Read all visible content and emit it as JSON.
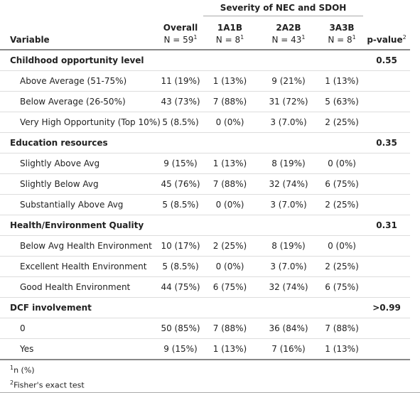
{
  "header": {
    "spanner": "Severity of NEC and SDOH",
    "columns": [
      {
        "name": "Variable"
      },
      {
        "name": "Overall",
        "n": "N = 59",
        "mark": "1"
      },
      {
        "name": "1A1B",
        "n": "N = 8",
        "mark": "1"
      },
      {
        "name": "2A2B",
        "n": "N = 43",
        "mark": "1"
      },
      {
        "name": "3A3B",
        "n": "N = 8",
        "mark": "1"
      },
      {
        "name": "p-value",
        "mark": "2"
      }
    ]
  },
  "table": {
    "groups": [
      {
        "label": "Childhood opportunity level",
        "p": "0.55",
        "rows": [
          {
            "label": "Above Average (51-75%)",
            "values": [
              "11 (19%)",
              "1 (13%)",
              "9 (21%)",
              "1 (13%)"
            ]
          },
          {
            "label": "Below Average (26-50%)",
            "values": [
              "43 (73%)",
              "7 (88%)",
              "31 (72%)",
              "5 (63%)"
            ]
          },
          {
            "label": "Very High Opportunity (Top 10%)",
            "values": [
              "5 (8.5%)",
              "0 (0%)",
              "3 (7.0%)",
              "2 (25%)"
            ]
          }
        ]
      },
      {
        "label": "Education resources",
        "p": "0.35",
        "rows": [
          {
            "label": "Slightly Above Avg",
            "values": [
              "9 (15%)",
              "1 (13%)",
              "8 (19%)",
              "0 (0%)"
            ]
          },
          {
            "label": "Slightly Below Avg",
            "values": [
              "45 (76%)",
              "7 (88%)",
              "32 (74%)",
              "6 (75%)"
            ]
          },
          {
            "label": "Substantially Above Avg",
            "values": [
              "5 (8.5%)",
              "0 (0%)",
              "3 (7.0%)",
              "2 (25%)"
            ]
          }
        ]
      },
      {
        "label": "Health/Environment Quality",
        "p": "0.31",
        "rows": [
          {
            "label": "Below Avg Health Environment",
            "values": [
              "10 (17%)",
              "2 (25%)",
              "8 (19%)",
              "0 (0%)"
            ]
          },
          {
            "label": "Excellent Health Environment",
            "values": [
              "5 (8.5%)",
              "0 (0%)",
              "3 (7.0%)",
              "2 (25%)"
            ]
          },
          {
            "label": "Good Health Environment",
            "values": [
              "44 (75%)",
              "6 (75%)",
              "32 (74%)",
              "6 (75%)"
            ]
          }
        ]
      },
      {
        "label": "DCF involvement",
        "p": ">0.99",
        "rows": [
          {
            "label": "0",
            "values": [
              "50 (85%)",
              "7 (88%)",
              "36 (84%)",
              "7 (88%)"
            ]
          },
          {
            "label": "Yes",
            "values": [
              "9 (15%)",
              "1 (13%)",
              "7 (16%)",
              "1 (13%)"
            ]
          }
        ]
      }
    ]
  },
  "footnotes": [
    {
      "mark": "1",
      "text": "n (%)"
    },
    {
      "mark": "2",
      "text": "Fisher's exact test"
    }
  ]
}
